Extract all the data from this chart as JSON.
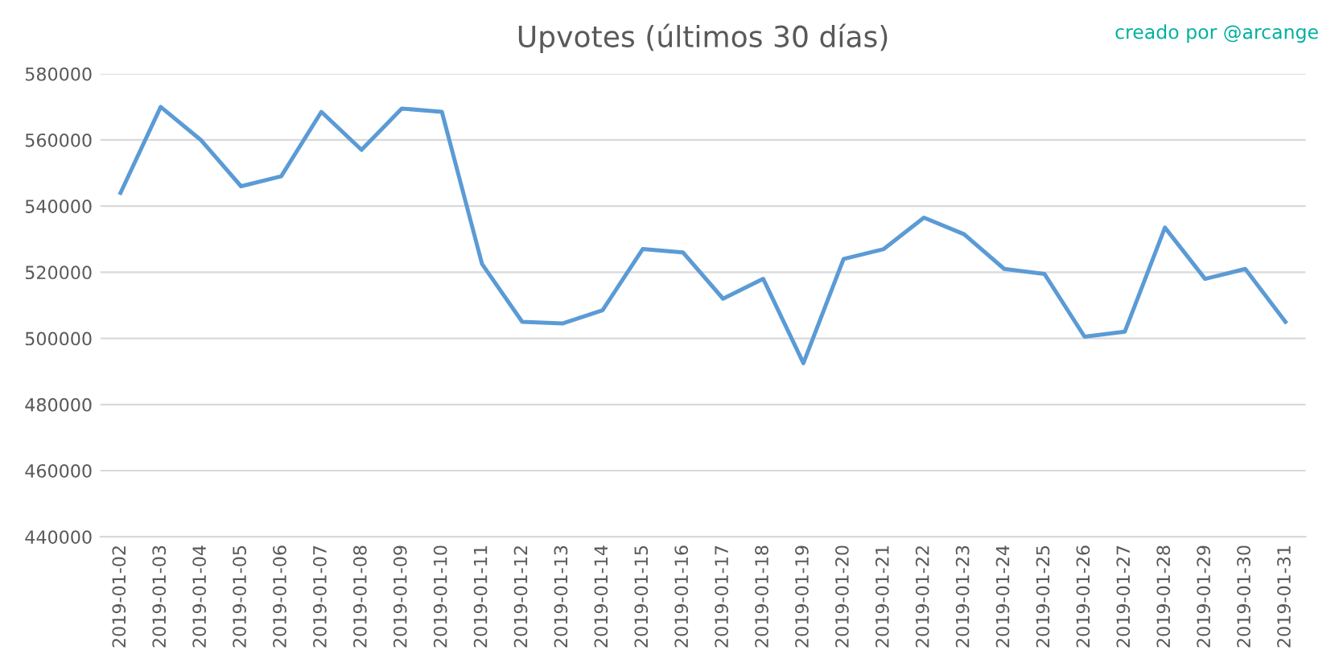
{
  "chart_data": {
    "type": "line",
    "title": "Upvotes (últimos 30 días)",
    "annotations": [
      "creado por @arcange"
    ],
    "categories": [
      "2019-01-02",
      "2019-01-03",
      "2019-01-04",
      "2019-01-05",
      "2019-01-06",
      "2019-01-07",
      "2019-01-08",
      "2019-01-09",
      "2019-01-10",
      "2019-01-11",
      "2019-01-12",
      "2019-01-13",
      "2019-01-14",
      "2019-01-15",
      "2019-01-16",
      "2019-01-17",
      "2019-01-18",
      "2019-01-19",
      "2019-01-20",
      "2019-01-21",
      "2019-01-22",
      "2019-01-23",
      "2019-01-24",
      "2019-01-25",
      "2019-01-26",
      "2019-01-27",
      "2019-01-28",
      "2019-01-29",
      "2019-01-30",
      "2019-01-31"
    ],
    "series": [
      {
        "color": "#5b9bd5",
        "values": [
          544000,
          570000,
          560000,
          546000,
          549000,
          568500,
          557000,
          569500,
          568500,
          522500,
          505000,
          504500,
          508500,
          527000,
          526000,
          512000,
          518000,
          492500,
          524000,
          527000,
          536500,
          531500,
          521000,
          519500,
          500500,
          502000,
          533500,
          518000,
          521000,
          505000
        ]
      }
    ],
    "ylim": [
      440000,
      580000
    ],
    "yticks": [
      440000,
      460000,
      480000,
      500000,
      520000,
      540000,
      560000,
      580000
    ],
    "grid": "y",
    "legend": false,
    "marker": "none",
    "line_style": "solid"
  }
}
